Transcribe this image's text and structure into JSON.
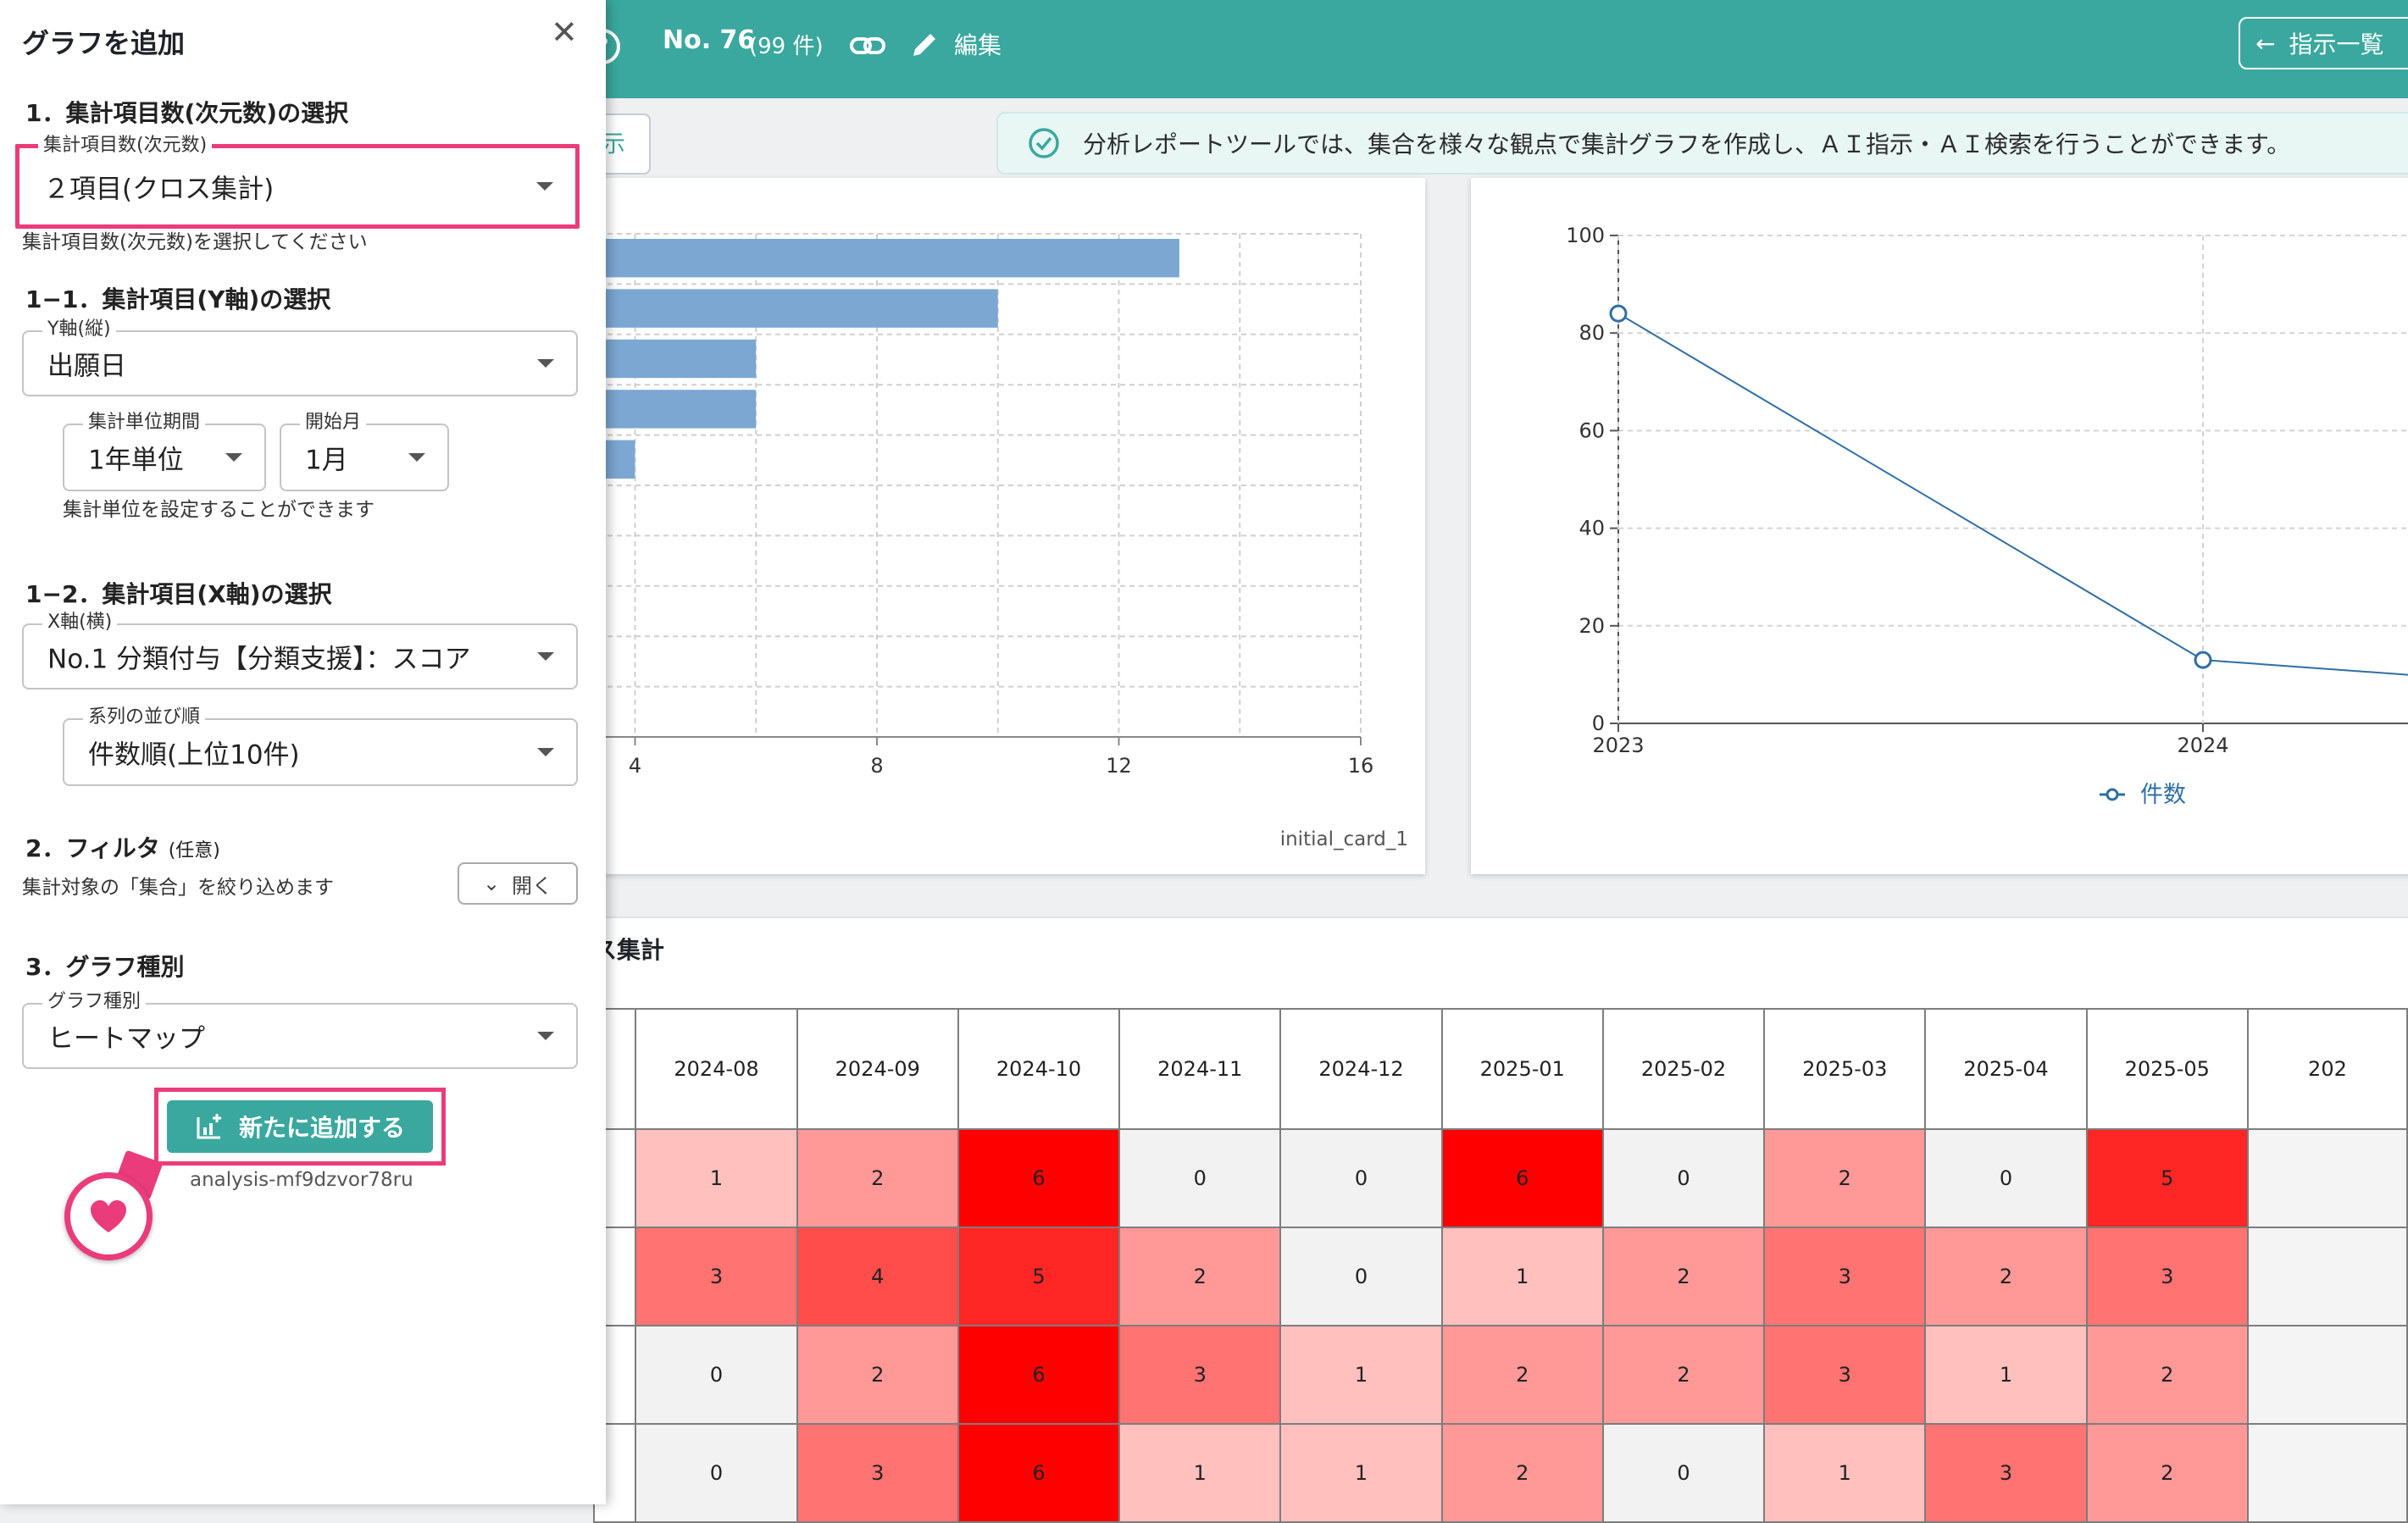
{
  "header": {
    "number": "No. 76",
    "count": "(99 件)",
    "edit_label": "編集",
    "back_label": "指示一覧"
  },
  "notice": {
    "left_tab_text": "示",
    "message": "分析レポートツールでは、集合を様々な観点で集計グラフを作成し、ＡＩ指示・ＡＩ検索を行うことができます。"
  },
  "bar_card": {
    "card_id": "initial_card_1",
    "chart_data": {
      "type": "bar",
      "orientation": "horizontal",
      "values": [
        13,
        10,
        6,
        6,
        4
      ],
      "xlim": [
        0,
        16
      ],
      "x_ticks": [
        "4",
        "8",
        "12",
        "16"
      ],
      "bar_color": "#7ba7d2"
    }
  },
  "line_card": {
    "chart_data": {
      "type": "line",
      "x": [
        "2023",
        "2024"
      ],
      "series": [
        {
          "name": "件数",
          "values": [
            84,
            13
          ]
        }
      ],
      "ylim": [
        0,
        100
      ],
      "y_ticks": [
        "0",
        "20",
        "40",
        "60",
        "80",
        "100"
      ],
      "color": "#2f6ea4"
    }
  },
  "heatmap": {
    "title_fragment": "ス集計",
    "columns": [
      "2024-08",
      "2024-09",
      "2024-10",
      "2024-11",
      "2024-12",
      "2025-01",
      "2025-02",
      "2025-03",
      "2025-04",
      "2025-05",
      "202"
    ],
    "rows": [
      [
        "1",
        "2",
        "6",
        "0",
        "0",
        "6",
        "0",
        "2",
        "0",
        "5",
        ""
      ],
      [
        "3",
        "4",
        "5",
        "2",
        "0",
        "1",
        "2",
        "3",
        "2",
        "3",
        ""
      ],
      [
        "0",
        "2",
        "6",
        "3",
        "1",
        "2",
        "2",
        "3",
        "1",
        "2",
        ""
      ],
      [
        "0",
        "3",
        "6",
        "1",
        "1",
        "2",
        "0",
        "1",
        "3",
        "2",
        ""
      ]
    ],
    "max": 6
  },
  "panel": {
    "title": "グラフを追加",
    "section1": "1．集計項目数(次元数)の選択",
    "dimension": {
      "label": "集計項目数(次元数)",
      "value": "２項目(クロス集計)",
      "helper": "集計項目数(次元数)を選択してください"
    },
    "section1_1": "1−1．集計項目(Y軸)の選択",
    "y_axis": {
      "label": "Y軸(縦)",
      "value": "出願日"
    },
    "period": {
      "label": "集計単位期間",
      "value": "1年単位"
    },
    "start_month": {
      "label": "開始月",
      "value": "1月"
    },
    "period_helper": "集計単位を設定することができます",
    "section1_2": "1−2．集計項目(X軸)の選択",
    "x_axis": {
      "label": "X軸(横)",
      "value": "No.1 分類付与【分類支援】：スコア"
    },
    "series_order": {
      "label": "系列の並び順",
      "value": "件数順(上位10件)"
    },
    "section2": "2．フィルタ",
    "section2_optional": "(任意)",
    "filter_helper": "集計対象の「集合」を絞り込めます",
    "open_label": "開く",
    "section3": "3．グラフ種別",
    "graph_type": {
      "label": "グラフ種別",
      "value": "ヒートマップ"
    },
    "add_button": "新たに追加する",
    "analysis_id": "analysis-mf9dzvor78ru"
  }
}
